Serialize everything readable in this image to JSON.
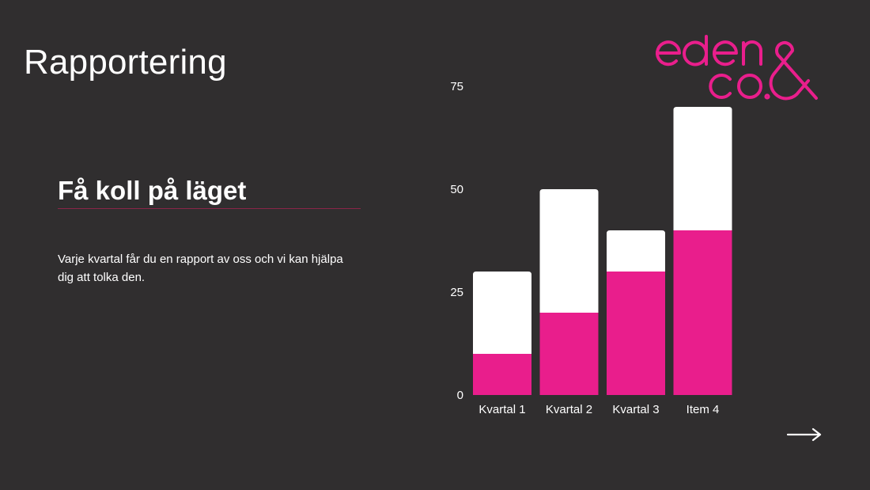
{
  "header": {
    "title": "Rapportering"
  },
  "content": {
    "heading": "Få koll på läget",
    "body": "Varje kvartal får du en rapport av oss och vi kan hjälpa dig att tolka den."
  },
  "logo": {
    "text": "eden&co.",
    "color": "#e91e8c"
  },
  "navigation": {
    "next_icon": "arrow-right-icon"
  },
  "colors": {
    "background": "#302e2f",
    "accent": "#e91e8c",
    "secondary": "#ffffff",
    "rule": "#8a2548"
  },
  "chart_data": {
    "type": "bar",
    "stacked": true,
    "categories": [
      "Kvartal 1",
      "Kvartal 2",
      "Kvartal 3",
      "Item 4"
    ],
    "series": [
      {
        "values": [
          10,
          20,
          30,
          40
        ],
        "color": "#e91e8c"
      },
      {
        "values": [
          20,
          30,
          10,
          30
        ],
        "color": "#ffffff"
      }
    ],
    "ylim": [
      0,
      75
    ],
    "yticks": [
      0,
      25,
      50,
      75
    ],
    "grid": false,
    "legend": "none"
  }
}
